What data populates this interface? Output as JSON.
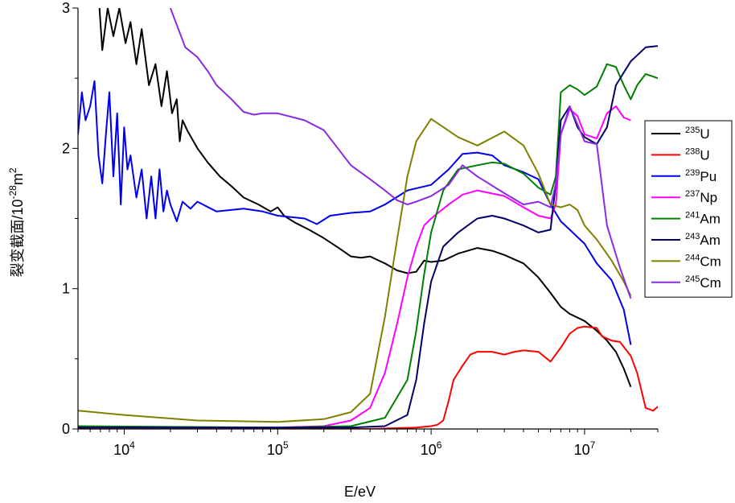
{
  "chart_data": {
    "type": "line",
    "title": "",
    "xlabel": "E/eV",
    "ylabel": "裂变截面/10",
    "ylabel_exponent": "-28",
    "ylabel_unit_base": "m",
    "ylabel_unit_exponent": "2",
    "x_scale": "log",
    "xlim": [
      5000,
      30000000
    ],
    "ylim": [
      0,
      3
    ],
    "x_ticks": [
      {
        "base": "10",
        "exp": "4",
        "value": 10000
      },
      {
        "base": "10",
        "exp": "5",
        "value": 100000
      },
      {
        "base": "10",
        "exp": "6",
        "value": 1000000
      },
      {
        "base": "10",
        "exp": "7",
        "value": 10000000
      }
    ],
    "y_ticks": [
      0,
      1,
      2,
      3
    ],
    "grid": false,
    "legend_position": "right",
    "series": [
      {
        "name": "U",
        "mass": "235",
        "color": "#000000",
        "points": [
          [
            6900,
            3.0
          ],
          [
            7200,
            2.7
          ],
          [
            7800,
            3.0
          ],
          [
            8500,
            2.8
          ],
          [
            9300,
            3.0
          ],
          [
            10200,
            2.75
          ],
          [
            11000,
            2.9
          ],
          [
            12000,
            2.6
          ],
          [
            13000,
            2.85
          ],
          [
            14500,
            2.45
          ],
          [
            16000,
            2.6
          ],
          [
            17500,
            2.3
          ],
          [
            19000,
            2.55
          ],
          [
            20500,
            2.25
          ],
          [
            22000,
            2.35
          ],
          [
            23000,
            2.05
          ],
          [
            24000,
            2.2
          ],
          [
            26000,
            2.12
          ],
          [
            30000,
            2.0
          ],
          [
            35000,
            1.9
          ],
          [
            42000,
            1.8
          ],
          [
            50000,
            1.73
          ],
          [
            60000,
            1.65
          ],
          [
            75000,
            1.6
          ],
          [
            90000,
            1.55
          ],
          [
            100000,
            1.58
          ],
          [
            110000,
            1.52
          ],
          [
            130000,
            1.47
          ],
          [
            160000,
            1.42
          ],
          [
            200000,
            1.36
          ],
          [
            250000,
            1.29
          ],
          [
            300000,
            1.23
          ],
          [
            350000,
            1.22
          ],
          [
            400000,
            1.23
          ],
          [
            500000,
            1.18
          ],
          [
            600000,
            1.13
          ],
          [
            700000,
            1.11
          ],
          [
            800000,
            1.12
          ],
          [
            900000,
            1.2
          ],
          [
            1000000,
            1.19
          ],
          [
            1200000,
            1.2
          ],
          [
            1500000,
            1.25
          ],
          [
            2000000,
            1.29
          ],
          [
            2500000,
            1.27
          ],
          [
            3000000,
            1.24
          ],
          [
            4000000,
            1.18
          ],
          [
            5000000,
            1.08
          ],
          [
            6000000,
            0.97
          ],
          [
            7000000,
            0.87
          ],
          [
            8000000,
            0.82
          ],
          [
            10000000,
            0.77
          ],
          [
            12000000,
            0.7
          ],
          [
            14000000,
            0.63
          ],
          [
            16000000,
            0.55
          ],
          [
            18000000,
            0.43
          ],
          [
            20000000,
            0.3
          ]
        ]
      },
      {
        "name": "U",
        "mass": "238",
        "color": "#ff0000",
        "points": [
          [
            5000,
            0.0
          ],
          [
            100000,
            0.0
          ],
          [
            400000,
            0.0
          ],
          [
            800000,
            0.01
          ],
          [
            1000000,
            0.02
          ],
          [
            1100000,
            0.03
          ],
          [
            1200000,
            0.06
          ],
          [
            1300000,
            0.2
          ],
          [
            1400000,
            0.35
          ],
          [
            1600000,
            0.45
          ],
          [
            1800000,
            0.53
          ],
          [
            2000000,
            0.55
          ],
          [
            2500000,
            0.55
          ],
          [
            3000000,
            0.53
          ],
          [
            3500000,
            0.55
          ],
          [
            4000000,
            0.56
          ],
          [
            5000000,
            0.55
          ],
          [
            6000000,
            0.48
          ],
          [
            7000000,
            0.58
          ],
          [
            8000000,
            0.68
          ],
          [
            9000000,
            0.72
          ],
          [
            10000000,
            0.73
          ],
          [
            12000000,
            0.72
          ],
          [
            13000000,
            0.66
          ],
          [
            15000000,
            0.63
          ],
          [
            17000000,
            0.62
          ],
          [
            20000000,
            0.52
          ],
          [
            22000000,
            0.4
          ],
          [
            25000000,
            0.15
          ],
          [
            28000000,
            0.13
          ],
          [
            30000000,
            0.16
          ]
        ]
      },
      {
        "name": "Pu",
        "mass": "239",
        "color": "#0000ee",
        "points": [
          [
            5000,
            2.1
          ],
          [
            5300,
            2.4
          ],
          [
            5600,
            2.2
          ],
          [
            6000,
            2.3
          ],
          [
            6400,
            2.48
          ],
          [
            6800,
            1.95
          ],
          [
            7200,
            1.75
          ],
          [
            7600,
            2.1
          ],
          [
            8000,
            2.4
          ],
          [
            8500,
            1.8
          ],
          [
            9000,
            2.25
          ],
          [
            9500,
            1.6
          ],
          [
            10000,
            2.15
          ],
          [
            10500,
            1.85
          ],
          [
            11000,
            1.95
          ],
          [
            12000,
            1.65
          ],
          [
            13000,
            1.85
          ],
          [
            14000,
            1.5
          ],
          [
            15000,
            1.8
          ],
          [
            16000,
            1.5
          ],
          [
            17000,
            1.85
          ],
          [
            18000,
            1.55
          ],
          [
            19000,
            1.7
          ],
          [
            20000,
            1.6
          ],
          [
            22000,
            1.48
          ],
          [
            24000,
            1.62
          ],
          [
            27000,
            1.57
          ],
          [
            30000,
            1.62
          ],
          [
            40000,
            1.55
          ],
          [
            60000,
            1.57
          ],
          [
            80000,
            1.55
          ],
          [
            100000,
            1.52
          ],
          [
            150000,
            1.5
          ],
          [
            180000,
            1.46
          ],
          [
            220000,
            1.52
          ],
          [
            300000,
            1.54
          ],
          [
            400000,
            1.55
          ],
          [
            500000,
            1.6
          ],
          [
            700000,
            1.7
          ],
          [
            1000000,
            1.74
          ],
          [
            1300000,
            1.85
          ],
          [
            1600000,
            1.96
          ],
          [
            2000000,
            1.97
          ],
          [
            2500000,
            1.95
          ],
          [
            3000000,
            1.88
          ],
          [
            4000000,
            1.83
          ],
          [
            5000000,
            1.78
          ],
          [
            6000000,
            1.6
          ],
          [
            7000000,
            1.48
          ],
          [
            8000000,
            1.42
          ],
          [
            10000000,
            1.32
          ],
          [
            12000000,
            1.18
          ],
          [
            15000000,
            1.06
          ],
          [
            18000000,
            0.85
          ],
          [
            20000000,
            0.6
          ]
        ]
      },
      {
        "name": "Np",
        "mass": "237",
        "color": "#ff00ff",
        "points": [
          [
            5000,
            0.0
          ],
          [
            100000,
            0.01
          ],
          [
            200000,
            0.02
          ],
          [
            300000,
            0.06
          ],
          [
            400000,
            0.15
          ],
          [
            500000,
            0.4
          ],
          [
            600000,
            0.75
          ],
          [
            700000,
            1.08
          ],
          [
            800000,
            1.3
          ],
          [
            900000,
            1.45
          ],
          [
            1000000,
            1.5
          ],
          [
            1300000,
            1.6
          ],
          [
            1600000,
            1.67
          ],
          [
            2000000,
            1.7
          ],
          [
            3000000,
            1.66
          ],
          [
            4000000,
            1.58
          ],
          [
            5000000,
            1.52
          ],
          [
            6000000,
            1.5
          ],
          [
            6500000,
            1.6
          ],
          [
            7000000,
            2.1
          ],
          [
            8000000,
            2.28
          ],
          [
            9000000,
            2.23
          ],
          [
            10000000,
            2.1
          ],
          [
            12000000,
            2.07
          ],
          [
            14000000,
            2.25
          ],
          [
            16000000,
            2.3
          ],
          [
            18000000,
            2.22
          ],
          [
            20000000,
            2.2
          ]
        ]
      },
      {
        "name": "Am",
        "mass": "241",
        "color": "#008000",
        "points": [
          [
            5000,
            0.02
          ],
          [
            100000,
            0.01
          ],
          [
            300000,
            0.02
          ],
          [
            500000,
            0.08
          ],
          [
            700000,
            0.35
          ],
          [
            800000,
            0.7
          ],
          [
            900000,
            1.1
          ],
          [
            1000000,
            1.4
          ],
          [
            1200000,
            1.7
          ],
          [
            1500000,
            1.85
          ],
          [
            2000000,
            1.88
          ],
          [
            2500000,
            1.9
          ],
          [
            3000000,
            1.89
          ],
          [
            4000000,
            1.82
          ],
          [
            5000000,
            1.72
          ],
          [
            6000000,
            1.67
          ],
          [
            6500000,
            1.8
          ],
          [
            7000000,
            2.4
          ],
          [
            8000000,
            2.45
          ],
          [
            9000000,
            2.42
          ],
          [
            10000000,
            2.38
          ],
          [
            12000000,
            2.44
          ],
          [
            14000000,
            2.6
          ],
          [
            16000000,
            2.58
          ],
          [
            18000000,
            2.45
          ],
          [
            20000000,
            2.35
          ],
          [
            22000000,
            2.45
          ],
          [
            25000000,
            2.53
          ],
          [
            30000000,
            2.5
          ]
        ]
      },
      {
        "name": "Am",
        "mass": "243",
        "color": "#000066",
        "points": [
          [
            5000,
            0.01
          ],
          [
            100000,
            0.01
          ],
          [
            300000,
            0.01
          ],
          [
            500000,
            0.02
          ],
          [
            700000,
            0.1
          ],
          [
            800000,
            0.35
          ],
          [
            900000,
            0.75
          ],
          [
            1000000,
            1.05
          ],
          [
            1200000,
            1.3
          ],
          [
            1500000,
            1.4
          ],
          [
            2000000,
            1.5
          ],
          [
            2500000,
            1.52
          ],
          [
            3000000,
            1.5
          ],
          [
            4000000,
            1.45
          ],
          [
            5000000,
            1.4
          ],
          [
            6000000,
            1.42
          ],
          [
            6500000,
            1.75
          ],
          [
            7000000,
            2.2
          ],
          [
            8000000,
            2.3
          ],
          [
            9000000,
            2.15
          ],
          [
            10000000,
            2.08
          ],
          [
            12000000,
            2.03
          ],
          [
            14000000,
            2.15
          ],
          [
            16000000,
            2.45
          ],
          [
            20000000,
            2.62
          ],
          [
            25000000,
            2.72
          ],
          [
            30000000,
            2.73
          ]
        ]
      },
      {
        "name": "Cm",
        "mass": "244",
        "color": "#808000",
        "points": [
          [
            5000,
            0.13
          ],
          [
            10000,
            0.1
          ],
          [
            30000,
            0.06
          ],
          [
            100000,
            0.05
          ],
          [
            200000,
            0.07
          ],
          [
            300000,
            0.12
          ],
          [
            400000,
            0.25
          ],
          [
            500000,
            0.8
          ],
          [
            600000,
            1.35
          ],
          [
            700000,
            1.8
          ],
          [
            800000,
            2.05
          ],
          [
            1000000,
            2.21
          ],
          [
            1500000,
            2.08
          ],
          [
            2000000,
            2.02
          ],
          [
            3000000,
            2.12
          ],
          [
            4000000,
            2.02
          ],
          [
            5000000,
            1.82
          ],
          [
            6000000,
            1.6
          ],
          [
            7000000,
            1.58
          ],
          [
            8000000,
            1.6
          ],
          [
            9000000,
            1.56
          ],
          [
            10000000,
            1.45
          ],
          [
            12000000,
            1.35
          ],
          [
            15000000,
            1.2
          ],
          [
            18000000,
            1.05
          ],
          [
            20000000,
            0.95
          ]
        ]
      },
      {
        "name": "Cm",
        "mass": "245",
        "color": "#8a2be2",
        "points": [
          [
            20000,
            3.0
          ],
          [
            25000,
            2.72
          ],
          [
            30000,
            2.65
          ],
          [
            35000,
            2.55
          ],
          [
            40000,
            2.45
          ],
          [
            50000,
            2.35
          ],
          [
            60000,
            2.26
          ],
          [
            70000,
            2.24
          ],
          [
            80000,
            2.25
          ],
          [
            100000,
            2.25
          ],
          [
            150000,
            2.2
          ],
          [
            200000,
            2.13
          ],
          [
            300000,
            1.88
          ],
          [
            400000,
            1.78
          ],
          [
            500000,
            1.7
          ],
          [
            600000,
            1.63
          ],
          [
            700000,
            1.6
          ],
          [
            800000,
            1.62
          ],
          [
            1000000,
            1.66
          ],
          [
            1300000,
            1.74
          ],
          [
            1600000,
            1.88
          ],
          [
            2000000,
            1.8
          ],
          [
            3000000,
            1.68
          ],
          [
            4000000,
            1.6
          ],
          [
            5000000,
            1.62
          ],
          [
            6000000,
            1.58
          ],
          [
            6500000,
            1.75
          ],
          [
            7000000,
            2.1
          ],
          [
            8000000,
            2.3
          ],
          [
            9000000,
            2.17
          ],
          [
            10000000,
            2.05
          ],
          [
            12000000,
            2.03
          ],
          [
            14000000,
            1.45
          ],
          [
            17000000,
            1.15
          ],
          [
            20000000,
            0.93
          ]
        ]
      }
    ]
  }
}
